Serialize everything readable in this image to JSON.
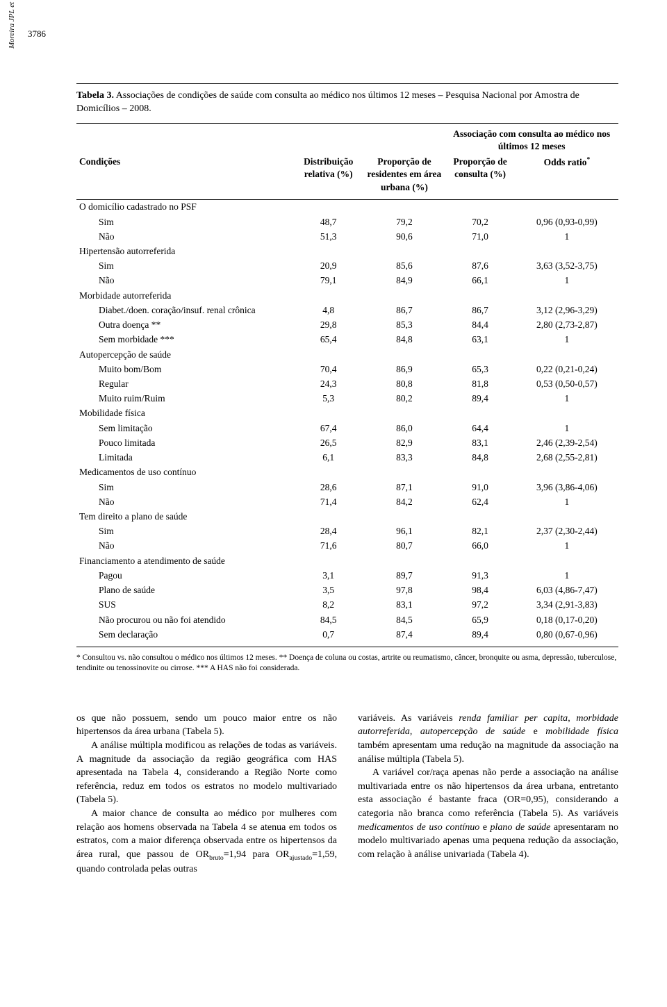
{
  "page_number": "3786",
  "running_head": "Moreira JPL et al.",
  "table": {
    "caption_label": "Tabela 3.",
    "caption_text": "Associações de condições de saúde com consulta ao médico nos últimos 12 meses – Pesquisa Nacional por Amostra de Domicílios – 2008.",
    "span_header": "Associação com consulta ao médico nos últimos 12 meses",
    "headers": {
      "c1": "Condições",
      "c2": "Distribuição relativa (%)",
      "c3": "Proporção de residentes em área urbana (%)",
      "c4": "Proporção de consulta (%)",
      "c5": "Odds ratio*"
    },
    "rows": [
      {
        "l": 0,
        "lab": "O domicílio cadastrado no PSF"
      },
      {
        "l": 1,
        "lab": "Sim",
        "v": [
          "48,7",
          "79,2",
          "70,2",
          "0,96 (0,93-0,99)"
        ]
      },
      {
        "l": 1,
        "lab": "Não",
        "v": [
          "51,3",
          "90,6",
          "71,0",
          "1"
        ]
      },
      {
        "l": 0,
        "lab": "Hipertensão autorreferida"
      },
      {
        "l": 1,
        "lab": "Sim",
        "v": [
          "20,9",
          "85,6",
          "87,6",
          "3,63 (3,52-3,75)"
        ]
      },
      {
        "l": 1,
        "lab": "Não",
        "v": [
          "79,1",
          "84,9",
          "66,1",
          "1"
        ]
      },
      {
        "l": 0,
        "lab": "Morbidade autorreferida"
      },
      {
        "l": 1,
        "lab": "Diabet./doen. coração/insuf. renal crônica",
        "v": [
          "4,8",
          "86,7",
          "86,7",
          "3,12 (2,96-3,29)"
        ]
      },
      {
        "l": 1,
        "lab": "Outra doença **",
        "v": [
          "29,8",
          "85,3",
          "84,4",
          "2,80 (2,73-2,87)"
        ]
      },
      {
        "l": 1,
        "lab": "Sem morbidade ***",
        "v": [
          "65,4",
          "84,8",
          "63,1",
          "1"
        ]
      },
      {
        "l": 0,
        "lab": "Autopercepção de saúde"
      },
      {
        "l": 1,
        "lab": "Muito bom/Bom",
        "v": [
          "70,4",
          "86,9",
          "65,3",
          "0,22 (0,21-0,24)"
        ]
      },
      {
        "l": 1,
        "lab": "Regular",
        "v": [
          "24,3",
          "80,8",
          "81,8",
          "0,53 (0,50-0,57)"
        ]
      },
      {
        "l": 1,
        "lab": "Muito ruim/Ruim",
        "v": [
          "5,3",
          "80,2",
          "89,4",
          "1"
        ]
      },
      {
        "l": 0,
        "lab": "Mobilidade física"
      },
      {
        "l": 1,
        "lab": "Sem limitação",
        "v": [
          "67,4",
          "86,0",
          "64,4",
          "1"
        ]
      },
      {
        "l": 1,
        "lab": "Pouco limitada",
        "v": [
          "26,5",
          "82,9",
          "83,1",
          "2,46 (2,39-2,54)"
        ]
      },
      {
        "l": 1,
        "lab": "Limitada",
        "v": [
          "6,1",
          "83,3",
          "84,8",
          "2,68 (2,55-2,81)"
        ]
      },
      {
        "l": 0,
        "lab": "Medicamentos de uso contínuo"
      },
      {
        "l": 1,
        "lab": "Sim",
        "v": [
          "28,6",
          "87,1",
          "91,0",
          "3,96 (3,86-4,06)"
        ]
      },
      {
        "l": 1,
        "lab": "Não",
        "v": [
          "71,4",
          "84,2",
          "62,4",
          "1"
        ]
      },
      {
        "l": 0,
        "lab": "Tem direito a plano de saúde"
      },
      {
        "l": 1,
        "lab": "Sim",
        "v": [
          "28,4",
          "96,1",
          "82,1",
          "2,37 (2,30-2,44)"
        ]
      },
      {
        "l": 1,
        "lab": "Não",
        "v": [
          "71,6",
          "80,7",
          "66,0",
          "1"
        ]
      },
      {
        "l": 0,
        "lab": "Financiamento a atendimento de saúde"
      },
      {
        "l": 1,
        "lab": "Pagou",
        "v": [
          "3,1",
          "89,7",
          "91,3",
          "1"
        ]
      },
      {
        "l": 1,
        "lab": "Plano de saúde",
        "v": [
          "3,5",
          "97,8",
          "98,4",
          "6,03 (4,86-7,47)"
        ]
      },
      {
        "l": 1,
        "lab": "SUS",
        "v": [
          "8,2",
          "83,1",
          "97,2",
          "3,34 (2,91-3,83)"
        ]
      },
      {
        "l": 1,
        "lab": "Não procurou ou não foi atendido",
        "v": [
          "84,5",
          "84,5",
          "65,9",
          "0,18 (0,17-0,20)"
        ]
      },
      {
        "l": 1,
        "lab": "Sem declaração",
        "v": [
          "0,7",
          "87,4",
          "89,4",
          "0,80 (0,67-0,96)"
        ]
      }
    ],
    "footnote": "* Consultou vs. não consultou o médico nos últimos 12 meses. ** Doença de coluna ou costas, artrite ou reumatismo, câncer, bronquite ou asma, depressão, tuberculose, tendinite ou tenossinovite ou cirrose. *** A HAS não foi considerada."
  },
  "body": {
    "left": [
      "os que não possuem, sendo um pouco maior entre os não hipertensos da área urbana (Tabela 5).",
      "A análise múltipla modificou as relações de todas as variáveis. A magnitude da associação da região geográfica com HAS apresentada na Tabela 4, considerando a Região Norte como referência, reduz em todos os estratos no modelo multivariado (Tabela 5).",
      "A maior chance de consulta ao médico por mulheres com relação aos homens observada na Tabela 4 se atenua em todos os estratos, com a maior diferença observada entre os hipertensos da área rural, que passou de OR<sub>bruto</sub>=1,94 para OR<sub>ajustado</sub>=1,59, quando controlada pelas outras"
    ],
    "right": [
      "variáveis. As variáveis <em>renda familiar per capita</em>, <em>morbidade autorreferida</em>, <em>autopercepção de saúde</em> e <em>mobilidade física</em> também apresentam uma redução na magnitude da associação na análise múltipla (Tabela 5).",
      "A variável cor/raça apenas não perde a associação na análise multivariada entre os não hipertensos da área urbana, entretanto esta associação é bastante fraca (OR=0,95), considerando a categoria não branca como referência (Tabela 5). As variáveis <em>medicamentos de uso contínuo</em> e <em>plano de saúde</em> apresentaram no modelo multivariado apenas uma pequena redução da associação, com relação à análise univariada (Tabela 4)."
    ]
  }
}
